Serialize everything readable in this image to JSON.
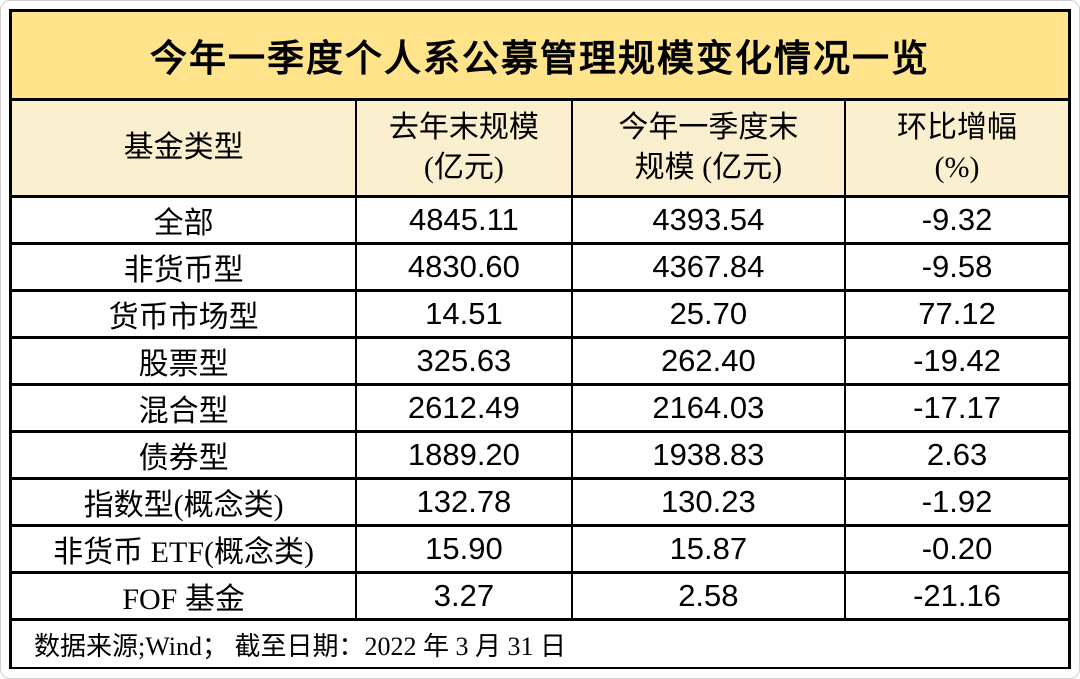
{
  "title": "今年一季度个人系公募管理规模变化情况一览",
  "header": {
    "col1": {
      "label": "基金类型"
    },
    "col2": {
      "label": "去年末规模",
      "sub": "(亿元)"
    },
    "col3": {
      "label": "今年一季度末",
      "sub": "规模 (亿元)"
    },
    "col4": {
      "label": "环比增幅",
      "sub": "(%)"
    }
  },
  "rows": [
    {
      "cells": [
        "全部",
        "4845.11",
        "4393.54",
        "-9.32"
      ]
    },
    {
      "cells": [
        "非货币型",
        "4830.60",
        "4367.84",
        "-9.58"
      ]
    },
    {
      "cells": [
        "货币市场型",
        "14.51",
        "25.70",
        "77.12"
      ]
    },
    {
      "cells": [
        "股票型",
        "325.63",
        "262.40",
        "-19.42"
      ]
    },
    {
      "cells": [
        "混合型",
        "2612.49",
        "2164.03",
        "-17.17"
      ]
    },
    {
      "cells": [
        "债券型",
        "1889.20",
        "1938.83",
        "2.63"
      ]
    },
    {
      "cells": [
        "指数型(概念类)",
        "132.78",
        "130.23",
        "-1.92"
      ]
    },
    {
      "cells": [
        "非货币 ETF(概念类)",
        "15.90",
        "15.87",
        "-0.20"
      ]
    },
    {
      "cells": [
        "FOF 基金",
        "3.27",
        "2.58",
        "-21.16"
      ]
    }
  ],
  "footer": "数据来源;Wind；  截至日期：2022 年 3 月 31 日",
  "colors": {
    "title_bg": "#FFE48C",
    "header_bg": "#FAF0D0",
    "row_bg": "#FFFFFF",
    "border": "#000000"
  },
  "chart_data": {
    "type": "table",
    "title": "今年一季度个人系公募管理规模变化情况一览",
    "columns": [
      "基金类型",
      "去年末规模(亿元)",
      "今年一季度末规模(亿元)",
      "环比增幅(%)"
    ],
    "rows": [
      {
        "fund_type": "全部",
        "prev_year_end": 4845.11,
        "q1_end": 4393.54,
        "pct_change": -9.32
      },
      {
        "fund_type": "非货币型",
        "prev_year_end": 4830.6,
        "q1_end": 4367.84,
        "pct_change": -9.58
      },
      {
        "fund_type": "货币市场型",
        "prev_year_end": 14.51,
        "q1_end": 25.7,
        "pct_change": 77.12
      },
      {
        "fund_type": "股票型",
        "prev_year_end": 325.63,
        "q1_end": 262.4,
        "pct_change": -19.42
      },
      {
        "fund_type": "混合型",
        "prev_year_end": 2612.49,
        "q1_end": 2164.03,
        "pct_change": -17.17
      },
      {
        "fund_type": "债券型",
        "prev_year_end": 1889.2,
        "q1_end": 1938.83,
        "pct_change": 2.63
      },
      {
        "fund_type": "指数型(概念类)",
        "prev_year_end": 132.78,
        "q1_end": 130.23,
        "pct_change": -1.92
      },
      {
        "fund_type": "非货币 ETF(概念类)",
        "prev_year_end": 15.9,
        "q1_end": 15.87,
        "pct_change": -0.2
      },
      {
        "fund_type": "FOF 基金",
        "prev_year_end": 3.27,
        "q1_end": 2.58,
        "pct_change": -21.16
      }
    ],
    "source_note": "数据来源;Wind；  截至日期：2022 年 3 月 31 日"
  }
}
